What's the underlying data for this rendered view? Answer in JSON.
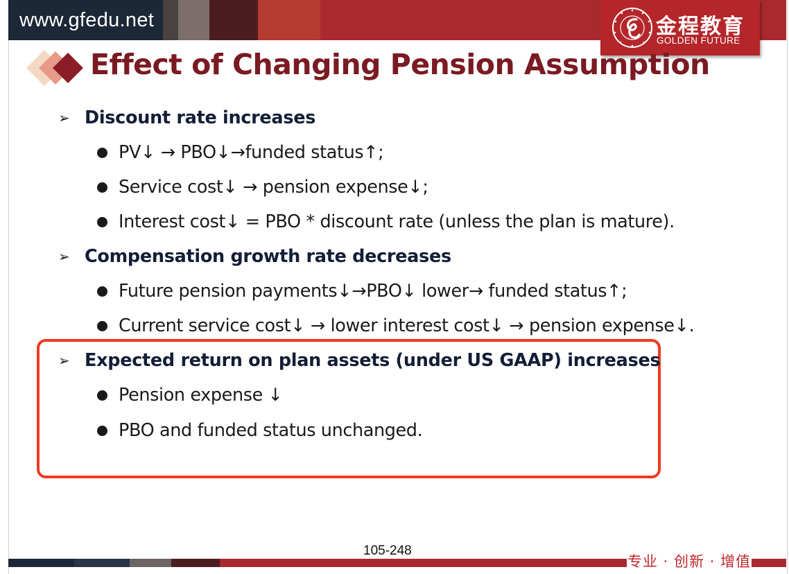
{
  "header": {
    "site": "www.gfedu.net",
    "logo_cn": "金程教育",
    "logo_en": "GOLDEN FUTURE",
    "seal_text": "GOLDEN FUTURE EDUCATION · 1998 ·",
    "colors": {
      "brand_red": "#b4262a",
      "dark_navy": "#1c2737",
      "title_maroon": "#7a1a22"
    }
  },
  "title": "Effect of Changing Pension Assumption",
  "sections": [
    {
      "heading": "Discount rate increases",
      "bullets": [
        "PV↓ → PBO↓→funded status↑;",
        "Service cost↓ → pension expense↓;",
        "Interest cost↓ = PBO * discount rate (unless the plan is mature)."
      ]
    },
    {
      "heading": "Compensation growth rate decreases",
      "bullets": [
        "Future pension payments↓→PBO↓ lower→ funded status↑;",
        "Current service cost↓ → lower interest cost↓ → pension expense↓."
      ]
    },
    {
      "heading": "Expected return on plan assets (under US GAAP) increases",
      "bullets": [
        "Pension expense ↓",
        "PBO and funded status unchanged."
      ]
    }
  ],
  "icons": {
    "heading_marker": "arrow-bullet-icon",
    "item_marker": "round-bullet-icon",
    "title_marker": "diamonds-icon"
  },
  "highlight_color": "#ef3a22",
  "footer": {
    "page_number": "105-248",
    "tagline": "专业 · 创新 · 增值"
  }
}
